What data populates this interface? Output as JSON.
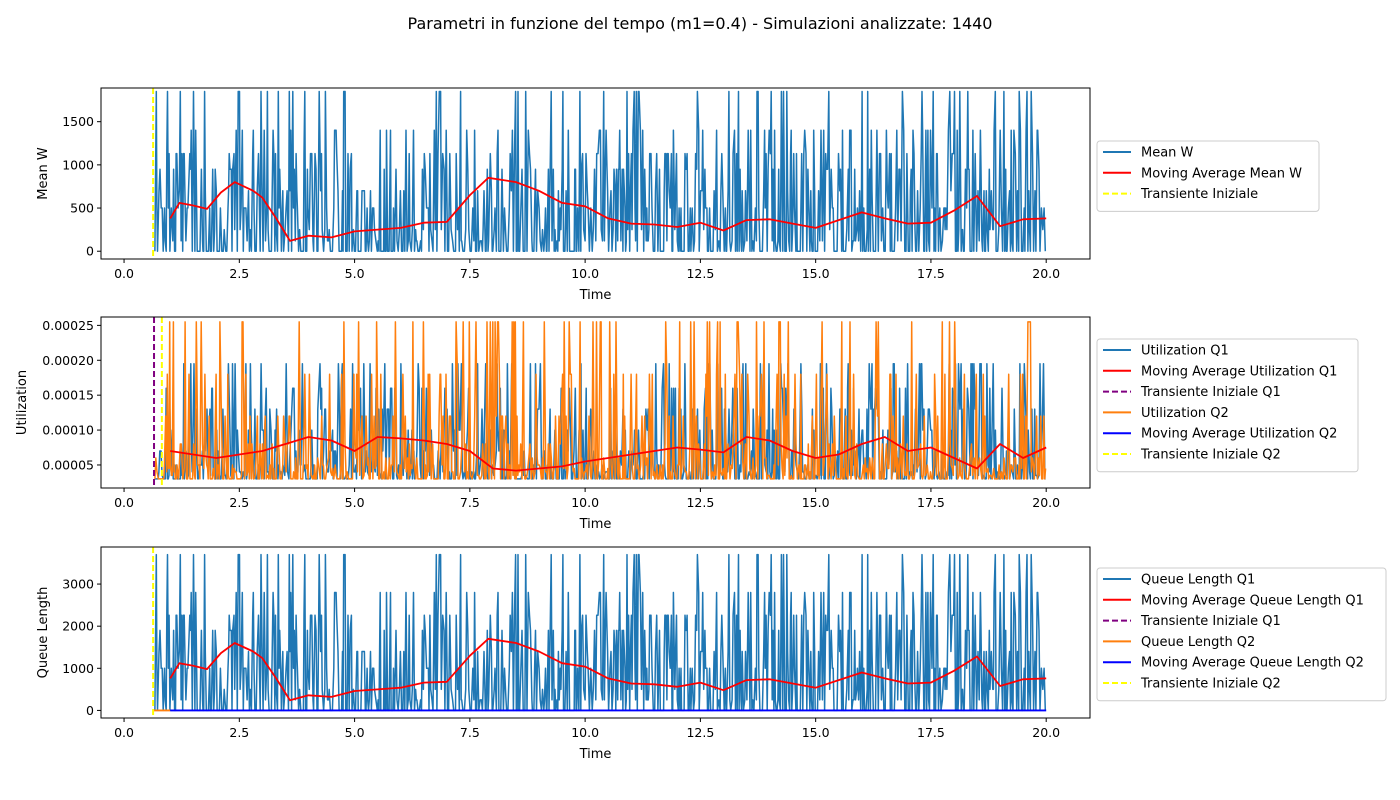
{
  "suptitle": "Parametri in funzione del tempo (m1=0.4) - Simulazioni analizzate: 1440",
  "colors": {
    "blue": "#1f77b4",
    "orange": "#ff7f0e",
    "red": "#ff0000",
    "purple": "#800080",
    "darkblue": "#0000ff",
    "yellow": "#ffff00"
  },
  "chart_data": [
    {
      "type": "line",
      "xlabel": "Time",
      "ylabel": "Mean W",
      "xlim": [
        -0.5,
        20.95
      ],
      "ylim": [
        -90,
        1890
      ],
      "xticks": [
        0.0,
        2.5,
        5.0,
        7.5,
        10.0,
        12.5,
        15.0,
        17.5,
        20.0
      ],
      "xtick_labels": [
        "0.0",
        "2.5",
        "5.0",
        "7.5",
        "10.0",
        "12.5",
        "15.0",
        "17.5",
        "20.0"
      ],
      "yticks": [
        0,
        500,
        1000,
        1500
      ],
      "ytick_labels": [
        "0",
        "500",
        "1000",
        "1500"
      ],
      "legend_position": "outside-right",
      "legend": [
        {
          "label": "Mean W",
          "color": "blue",
          "dash": false
        },
        {
          "label": "Moving Average Mean W",
          "color": "red",
          "dash": false
        },
        {
          "label": "Transiente Iniziale",
          "color": "yellow",
          "dash": true
        }
      ],
      "vlines": [
        {
          "x": 0.63,
          "color": "yellow"
        }
      ],
      "noisy": {
        "seed": 7,
        "low": 0,
        "high": 1850,
        "levels": [
          0,
          120,
          250,
          500,
          700,
          950,
          1130,
          1400,
          1850
        ],
        "color": "blue",
        "xstart": 0.67
      },
      "moving_average": {
        "color": "red",
        "x": [
          1.0,
          1.2,
          1.5,
          1.8,
          2.1,
          2.4,
          2.8,
          3.0,
          3.3,
          3.6,
          4.0,
          4.5,
          5.0,
          5.5,
          6.0,
          6.5,
          7.0,
          7.5,
          7.9,
          8.5,
          9.0,
          9.5,
          10.0,
          10.5,
          11.0,
          11.5,
          12.0,
          12.5,
          13.0,
          13.5,
          14.0,
          14.5,
          15.0,
          15.5,
          16.0,
          16.5,
          17.0,
          17.5,
          18.0,
          18.5,
          19.0,
          19.5,
          20.0
        ],
        "y": [
          380,
          560,
          530,
          490,
          680,
          800,
          700,
          620,
          380,
          120,
          180,
          160,
          230,
          250,
          270,
          330,
          340,
          650,
          850,
          800,
          700,
          560,
          520,
          380,
          320,
          310,
          280,
          330,
          240,
          360,
          370,
          320,
          270,
          360,
          450,
          380,
          320,
          330,
          470,
          640,
          290,
          370,
          380
        ]
      }
    },
    {
      "type": "line",
      "xlabel": "Time",
      "ylabel": "Utilization",
      "xlim": [
        -0.5,
        20.95
      ],
      "ylim": [
        1.7e-05,
        0.000262
      ],
      "xticks": [
        0.0,
        2.5,
        5.0,
        7.5,
        10.0,
        12.5,
        15.0,
        17.5,
        20.0
      ],
      "xtick_labels": [
        "0.0",
        "2.5",
        "5.0",
        "7.5",
        "10.0",
        "12.5",
        "15.0",
        "17.5",
        "20.0"
      ],
      "yticks": [
        5e-05,
        0.0001,
        0.00015,
        0.0002,
        0.00025
      ],
      "ytick_labels": [
        "0.00005",
        "0.00010",
        "0.00015",
        "0.00020",
        "0.00025"
      ],
      "legend_position": "outside-right",
      "legend": [
        {
          "label": "Utilization Q1",
          "color": "blue",
          "dash": false
        },
        {
          "label": "Moving Average Utilization Q1",
          "color": "red",
          "dash": false
        },
        {
          "label": "Transiente Iniziale Q1",
          "color": "purple",
          "dash": true
        },
        {
          "label": "Utilization Q2",
          "color": "orange",
          "dash": false
        },
        {
          "label": "Moving Average Utilization Q2",
          "color": "darkblue",
          "dash": false
        },
        {
          "label": "Transiente Iniziale Q2",
          "color": "yellow",
          "dash": true
        }
      ],
      "vlines": [
        {
          "x": 0.65,
          "color": "purple"
        },
        {
          "x": 0.82,
          "color": "yellow"
        }
      ],
      "noisy": {
        "seed": 11,
        "low": 3e-05,
        "high": 0.000195,
        "levels": [
          3e-05,
          3.5e-05,
          4e-05,
          5e-05,
          7e-05,
          0.0001,
          0.00013,
          0.00016,
          0.000195
        ],
        "color": "blue",
        "xstart": 0.67
      },
      "noisy2": {
        "seed": 23,
        "low": 3e-05,
        "high": 0.000255,
        "levels": [
          3e-05,
          3.5e-05,
          4e-05,
          4.5e-05,
          5e-05,
          6e-05,
          8e-05,
          0.00012,
          0.00018,
          0.000255
        ],
        "color": "orange",
        "xstart": 0.67
      },
      "moving_average": {
        "color": "red",
        "x": [
          1.0,
          1.5,
          2.0,
          2.5,
          3.0,
          3.5,
          4.0,
          4.5,
          5.0,
          5.5,
          6.0,
          6.5,
          7.0,
          7.5,
          8.0,
          8.5,
          9.0,
          9.5,
          10.0,
          10.5,
          11.0,
          11.5,
          12.0,
          12.5,
          13.0,
          13.5,
          14.0,
          14.5,
          15.0,
          15.5,
          16.0,
          16.5,
          17.0,
          17.5,
          18.0,
          18.5,
          19.0,
          19.5,
          20.0
        ],
        "y": [
          7e-05,
          6.5e-05,
          6e-05,
          6.5e-05,
          7e-05,
          8e-05,
          9e-05,
          8.5e-05,
          7e-05,
          9e-05,
          8.8e-05,
          8.5e-05,
          8e-05,
          7e-05,
          4.5e-05,
          4.2e-05,
          4.5e-05,
          4.8e-05,
          5.5e-05,
          6e-05,
          6.5e-05,
          7e-05,
          7.5e-05,
          7.2e-05,
          6.8e-05,
          9e-05,
          8.5e-05,
          7e-05,
          6e-05,
          6.5e-05,
          8e-05,
          9e-05,
          7e-05,
          7.5e-05,
          6e-05,
          4.5e-05,
          8e-05,
          6e-05,
          7.5e-05
        ]
      }
    },
    {
      "type": "line",
      "xlabel": "Time",
      "ylabel": "Queue Length",
      "xlim": [
        -0.5,
        20.95
      ],
      "ylim": [
        -180,
        3880
      ],
      "xticks": [
        0.0,
        2.5,
        5.0,
        7.5,
        10.0,
        12.5,
        15.0,
        17.5,
        20.0
      ],
      "xtick_labels": [
        "0.0",
        "2.5",
        "5.0",
        "7.5",
        "10.0",
        "12.5",
        "15.0",
        "17.5",
        "20.0"
      ],
      "yticks": [
        0,
        1000,
        2000,
        3000
      ],
      "ytick_labels": [
        "0",
        "1000",
        "2000",
        "3000"
      ],
      "legend_position": "outside-right",
      "legend": [
        {
          "label": "Queue Length Q1",
          "color": "blue",
          "dash": false
        },
        {
          "label": "Moving Average Queue Length Q1",
          "color": "red",
          "dash": false
        },
        {
          "label": "Transiente Iniziale Q1",
          "color": "purple",
          "dash": true
        },
        {
          "label": "Queue Length Q2",
          "color": "orange",
          "dash": false
        },
        {
          "label": "Moving Average Queue Length Q2",
          "color": "darkblue",
          "dash": false
        },
        {
          "label": "Transiente Iniziale Q2",
          "color": "yellow",
          "dash": true
        }
      ],
      "vlines": [
        {
          "x": 0.63,
          "color": "yellow"
        }
      ],
      "noisy": {
        "seed": 7,
        "low": 0,
        "high": 3700,
        "levels": [
          0,
          250,
          500,
          1000,
          1400,
          1900,
          2260,
          2800,
          3700
        ],
        "color": "blue",
        "xstart": 0.67
      },
      "flat_lines": [
        {
          "color": "orange",
          "x": [
            0.65,
            1.0
          ],
          "y": [
            0,
            0
          ]
        },
        {
          "color": "darkblue",
          "x": [
            1.0,
            20.0
          ],
          "y": [
            0,
            0
          ]
        }
      ],
      "moving_average": {
        "color": "red",
        "x": [
          1.0,
          1.2,
          1.5,
          1.8,
          2.1,
          2.4,
          2.8,
          3.0,
          3.3,
          3.6,
          4.0,
          4.5,
          5.0,
          5.5,
          6.0,
          6.5,
          7.0,
          7.5,
          7.9,
          8.5,
          9.0,
          9.5,
          10.0,
          10.5,
          11.0,
          11.5,
          12.0,
          12.5,
          13.0,
          13.5,
          14.0,
          14.5,
          15.0,
          15.5,
          16.0,
          16.5,
          17.0,
          17.5,
          18.0,
          18.5,
          19.0,
          19.5,
          20.0
        ],
        "y": [
          760,
          1120,
          1060,
          980,
          1360,
          1600,
          1400,
          1240,
          760,
          240,
          360,
          320,
          460,
          500,
          540,
          660,
          680,
          1300,
          1700,
          1600,
          1400,
          1120,
          1040,
          760,
          640,
          620,
          560,
          660,
          480,
          720,
          740,
          640,
          540,
          720,
          900,
          760,
          640,
          660,
          940,
          1280,
          580,
          740,
          760
        ]
      }
    }
  ]
}
